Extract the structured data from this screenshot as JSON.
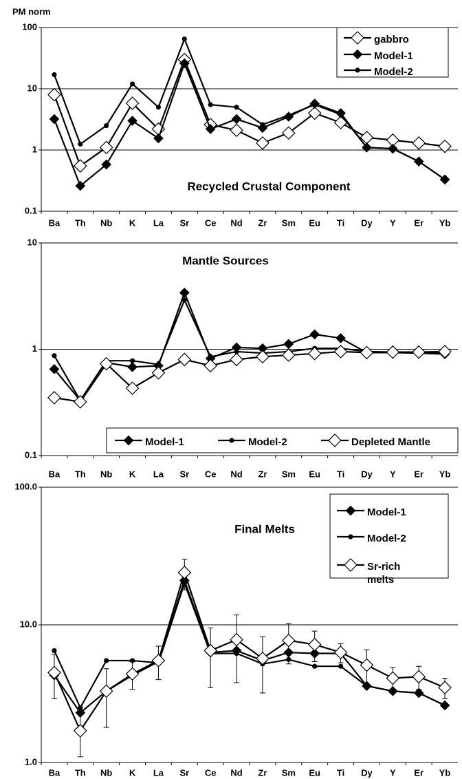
{
  "chart_data": [
    {
      "type": "line",
      "title": "Recycled Crustal Component",
      "y_label": "PM norm",
      "categories": [
        "Ba",
        "Th",
        "Nb",
        "K",
        "La",
        "Sr",
        "Ce",
        "Nd",
        "Zr",
        "Sm",
        "Eu",
        "Ti",
        "Dy",
        "Y",
        "Er",
        "Yb"
      ],
      "log_y": true,
      "grid": true,
      "legend": "upper right",
      "ylim": [
        0.1,
        100
      ],
      "yticks": [
        0.1,
        1,
        10,
        100
      ],
      "series": [
        {
          "name": "gabbro",
          "color": "#000000",
          "marker": "diamond-open",
          "values": [
            8,
            0.55,
            1.1,
            5.8,
            2.2,
            30,
            2.6,
            2.1,
            1.3,
            1.9,
            4,
            2.8,
            1.6,
            1.45,
            1.3,
            1.15
          ]
        },
        {
          "name": "Model-1",
          "color": "#000000",
          "marker": "diamond",
          "values": [
            3.2,
            0.26,
            0.58,
            3.0,
            1.55,
            26,
            2.2,
            3.2,
            2.3,
            3.5,
            5.7,
            4.0,
            1.1,
            1.05,
            0.65,
            0.33
          ]
        },
        {
          "name": "Model-2",
          "color": "#000000",
          "marker": "circle",
          "values": [
            17,
            1.25,
            2.5,
            12,
            5,
            65,
            5.5,
            5,
            2.6,
            3.7,
            5.5,
            3.8,
            1.1,
            1.05,
            0.65,
            0.33
          ]
        }
      ]
    },
    {
      "type": "line",
      "title": "Mantle Sources",
      "categories": [
        "Ba",
        "Th",
        "Nb",
        "K",
        "La",
        "Sr",
        "Ce",
        "Nd",
        "Zr",
        "Sm",
        "Eu",
        "Ti",
        "Dy",
        "Y",
        "Er",
        "Yb"
      ],
      "log_y": true,
      "grid": true,
      "legend": "lower center",
      "ylim": [
        0.1,
        10
      ],
      "yticks": [
        0.1,
        1,
        10
      ],
      "series": [
        {
          "name": "Model-1",
          "color": "#000000",
          "marker": "diamond",
          "values": [
            0.65,
            0.33,
            0.75,
            0.68,
            0.7,
            3.4,
            0.82,
            1.04,
            1.02,
            1.12,
            1.38,
            1.27,
            0.93,
            0.93,
            0.92,
            0.9
          ]
        },
        {
          "name": "Model-2",
          "color": "#000000",
          "marker": "circle",
          "values": [
            0.87,
            0.33,
            0.78,
            0.78,
            0.72,
            2.9,
            0.85,
            0.95,
            0.92,
            0.95,
            1.02,
            1.02,
            0.95,
            0.94,
            0.94,
            0.93
          ]
        },
        {
          "name": "Depleted Mantle",
          "color": "#000000",
          "marker": "diamond-open",
          "values": [
            0.35,
            0.32,
            0.73,
            0.43,
            0.6,
            0.8,
            0.7,
            0.8,
            0.85,
            0.88,
            0.91,
            0.95,
            0.93,
            0.94,
            0.94,
            0.95
          ]
        }
      ]
    },
    {
      "type": "line",
      "title": "Final Melts",
      "categories": [
        "Ba",
        "Th",
        "Nb",
        "K",
        "La",
        "Sr",
        "Ce",
        "Nd",
        "Zr",
        "Sm",
        "Eu",
        "Ti",
        "Dy",
        "Y",
        "Er",
        "Yb"
      ],
      "log_y": true,
      "grid": true,
      "legend": "upper right",
      "ylim": [
        1,
        100
      ],
      "yticks": [
        {
          "value": 1,
          "label": "1.0"
        },
        {
          "value": 10,
          "label": "10.0"
        },
        {
          "value": 100,
          "label": "100.0"
        }
      ],
      "series": [
        {
          "name": "Model-1",
          "color": "#000000",
          "marker": "diamond",
          "values": [
            4.3,
            2.3,
            3.3,
            4.3,
            5.4,
            21,
            6.3,
            6.5,
            5.5,
            6.3,
            6.2,
            6.2,
            3.6,
            3.3,
            3.2,
            2.6
          ]
        },
        {
          "name": "Model-2",
          "color": "#000000",
          "marker": "circle",
          "values": [
            6.5,
            2.5,
            5.5,
            5.5,
            5.3,
            20,
            6.2,
            6.2,
            5.2,
            5.6,
            5.0,
            5.0,
            3.6,
            3.3,
            3.2,
            2.6
          ]
        },
        {
          "name": "Sr-rich melts",
          "color": "#000000",
          "marker": "diamond-open",
          "values": [
            4.5,
            1.7,
            3.3,
            4.4,
            5.5,
            24,
            6.5,
            7.8,
            5.7,
            7.7,
            7.2,
            6.3,
            5.1,
            4.1,
            4.2,
            3.5
          ],
          "errors": [
            1.6,
            0.6,
            1.5,
            1.0,
            1.5,
            6,
            3,
            4,
            2.5,
            2.5,
            1.8,
            1.0,
            1.5,
            0.8,
            0.8,
            0.6
          ]
        }
      ]
    }
  ]
}
